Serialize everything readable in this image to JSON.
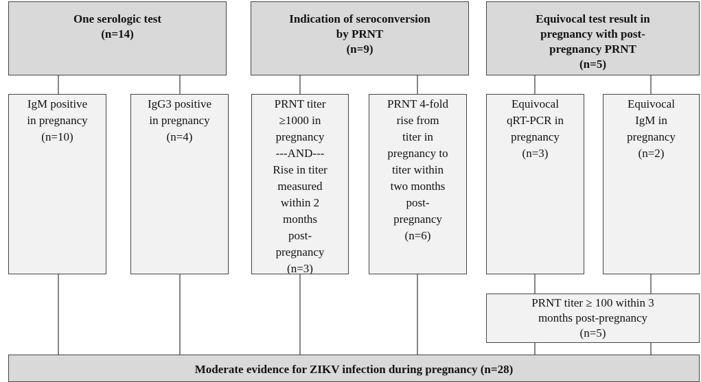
{
  "top_boxes": [
    {
      "lines": [
        "One serologic test",
        "(n=14)"
      ]
    },
    {
      "lines": [
        "Indication of seroconversion",
        "by PRNT",
        "(n=9)"
      ]
    },
    {
      "lines": [
        "Equivocal test result in",
        "pregnancy with post-",
        "pregnancy PRNT",
        "(n=5)"
      ]
    }
  ],
  "sub_boxes": [
    {
      "lines": [
        "IgM positive",
        "in pregnancy",
        "(n=10)"
      ]
    },
    {
      "lines": [
        "IgG3 positive",
        "in pregnancy",
        "(n=4)"
      ]
    },
    {
      "lines": [
        "PRNT titer",
        "≥1000 in",
        "pregnancy",
        "---AND---",
        "Rise in titer",
        "measured",
        "within 2",
        "months",
        "post-",
        "pregnancy",
        "(n=3)"
      ]
    },
    {
      "lines": [
        "PRNT 4-fold",
        "rise from",
        "titer in",
        "pregnancy to",
        "titer within",
        "two months",
        "post-",
        "pregnancy",
        "(n=6)"
      ]
    },
    {
      "lines": [
        "Equivocal",
        "qRT-PCR in",
        "pregnancy",
        "(n=3)"
      ]
    },
    {
      "lines": [
        "Equivocal",
        "IgM in",
        "pregnancy",
        "(n=2)"
      ]
    }
  ],
  "followup_box": {
    "lines": [
      "PRNT titer ≥ 100 within 3",
      "months post-pregnancy",
      "(n=5)"
    ]
  },
  "result_box": {
    "lines": [
      "Moderate evidence for ZIKV infection during pregnancy (n=28)"
    ]
  }
}
